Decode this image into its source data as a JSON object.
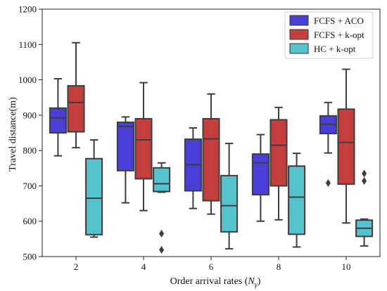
{
  "chart_data": {
    "type": "box",
    "xlabel": "Order arrival rates (",
    "xlabel_symbol": "N",
    "xlabel_subscript": "γ",
    "xlabel_suffix": ")",
    "ylabel": "Travel distance(m)",
    "ylim": [
      500,
      1200
    ],
    "yticks": [
      500,
      600,
      700,
      800,
      900,
      1000,
      1100,
      1200
    ],
    "categories": [
      "2",
      "4",
      "6",
      "8",
      "10"
    ],
    "legend_position": "top-right",
    "series": [
      {
        "name": "FCFS + ACO",
        "color": "#4a3fd6",
        "boxes": [
          {
            "whislo": 785,
            "q1": 850,
            "med": 892,
            "q3": 920,
            "whishi": 1003,
            "fliers": []
          },
          {
            "whislo": 652,
            "q1": 743,
            "med": 868,
            "q3": 880,
            "whishi": 895,
            "fliers": []
          },
          {
            "whislo": 636,
            "q1": 686,
            "med": 760,
            "q3": 832,
            "whishi": 864,
            "fliers": []
          },
          {
            "whislo": 600,
            "q1": 675,
            "med": 765,
            "q3": 790,
            "whishi": 845,
            "fliers": []
          },
          {
            "whislo": 793,
            "q1": 848,
            "med": 874,
            "q3": 898,
            "whishi": 936,
            "fliers": [
              708
            ]
          }
        ]
      },
      {
        "name": "FCFS + k-opt",
        "color": "#c4403f",
        "boxes": [
          {
            "whislo": 808,
            "q1": 853,
            "med": 936,
            "q3": 983,
            "whishi": 1105,
            "fliers": []
          },
          {
            "whislo": 630,
            "q1": 720,
            "med": 830,
            "q3": 890,
            "whishi": 992,
            "fliers": []
          },
          {
            "whislo": 620,
            "q1": 658,
            "med": 833,
            "q3": 890,
            "whishi": 960,
            "fliers": []
          },
          {
            "whislo": 604,
            "q1": 700,
            "med": 815,
            "q3": 887,
            "whishi": 922,
            "fliers": []
          },
          {
            "whislo": 595,
            "q1": 705,
            "med": 823,
            "q3": 917,
            "whishi": 1030,
            "fliers": []
          }
        ]
      },
      {
        "name": "HC + k-opt",
        "color": "#55c2cf",
        "boxes": [
          {
            "whislo": 555,
            "q1": 562,
            "med": 665,
            "q3": 777,
            "whishi": 830,
            "fliers": []
          },
          {
            "whislo": 682,
            "q1": 684,
            "med": 706,
            "q3": 751,
            "whishi": 765,
            "fliers": [
              565,
              519
            ]
          },
          {
            "whislo": 522,
            "q1": 570,
            "med": 644,
            "q3": 729,
            "whishi": 820,
            "fliers": []
          },
          {
            "whislo": 527,
            "q1": 563,
            "med": 668,
            "q3": 756,
            "whishi": 792,
            "fliers": []
          },
          {
            "whislo": 530,
            "q1": 557,
            "med": 580,
            "q3": 603,
            "whishi": 606,
            "fliers": [
              735,
              714
            ]
          }
        ]
      }
    ]
  }
}
